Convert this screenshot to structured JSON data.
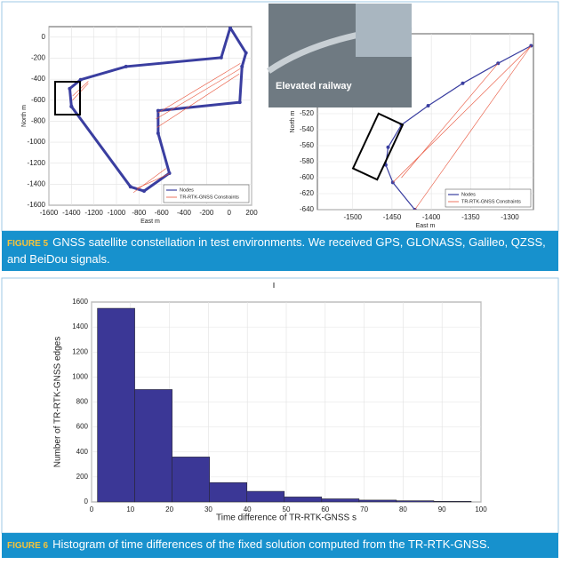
{
  "chart_data": [
    {
      "type": "line",
      "xlabel": "East m",
      "ylabel": "North m",
      "xlim": [
        -1600,
        200
      ],
      "xticks": [
        -1600,
        -1400,
        -1200,
        -1000,
        -800,
        -600,
        -400,
        -200,
        0,
        200
      ],
      "ylim": [
        -1600,
        100
      ],
      "yticks": [
        -1600,
        -1400,
        -1200,
        -1000,
        -800,
        -600,
        -400,
        -200,
        0
      ],
      "grid": true,
      "legend": "lower right",
      "series": [
        {
          "name": "Nodes",
          "color": "#3a3ea0",
          "x": [
            -1400,
            -1415,
            -1318,
            -915,
            -70,
            10,
            150,
            115,
            95,
            -630,
            -630,
            -530,
            -755,
            -875,
            -1400
          ],
          "values": [
            -660,
            -490,
            -405,
            -280,
            -195,
            90,
            -150,
            -280,
            -620,
            -700,
            -915,
            -1295,
            -1465,
            -1425,
            -660
          ]
        },
        {
          "name": "TR-RTK-GNSS Constraints",
          "color": "#e8533a",
          "x": [
            -1390,
            -1250,
            -1390,
            -1250,
            100,
            -630,
            100,
            -650,
            90,
            -640,
            -530,
            -820,
            -560,
            -850
          ],
          "values": [
            -560,
            -420,
            -600,
            -440,
            -250,
            -720,
            -300,
            -780,
            -350,
            -860,
            -1300,
            -1440,
            -1250,
            -1480
          ]
        }
      ]
    },
    {
      "type": "line",
      "xlabel": "East m",
      "ylabel": "North m",
      "xlim": [
        -1545,
        -1270
      ],
      "xticks": [
        -1500,
        -1450,
        -1400,
        -1350,
        -1300
      ],
      "ylim": [
        -640,
        -420
      ],
      "yticks": [
        -640,
        -620,
        -600,
        -580,
        -560,
        -540,
        -520
      ],
      "grid": true,
      "legend": "lower right",
      "series": [
        {
          "name": "Nodes",
          "color": "#3a3ea0",
          "x": [
            -1273,
            -1315,
            -1360,
            -1404,
            -1438,
            -1455,
            -1458,
            -1449,
            -1421
          ],
          "values": [
            -435,
            -457,
            -482,
            -510,
            -534,
            -562,
            -584,
            -606,
            -640
          ]
        },
        {
          "name": "TR-RTK-GNSS Constraints",
          "color": "#e8533a",
          "x": [
            -1273,
            -1449,
            -1273,
            -1421,
            -1315,
            -1438
          ],
          "values": [
            -435,
            -606,
            -435,
            -640,
            -457,
            -600
          ]
        }
      ]
    },
    {
      "type": "histogram",
      "xlabel": "Time difference of TR-RTK-GNSS s",
      "ylabel": "Number of TR-RTK-GNSS edges",
      "bins": [
        1.5,
        11.1,
        20.7,
        30.3,
        39.9,
        49.5,
        59.1,
        68.7,
        78.3,
        87.9,
        97.5
      ],
      "values": [
        1550,
        900,
        360,
        155,
        85,
        40,
        25,
        15,
        10,
        5
      ],
      "color": "#3b3796",
      "xlim": [
        0,
        100
      ],
      "xticks": [
        0,
        10,
        20,
        30,
        40,
        50,
        60,
        70,
        80,
        90,
        100
      ],
      "ylim": [
        0,
        1600
      ],
      "yticks": [
        0,
        200,
        400,
        600,
        800,
        1000,
        1200,
        1400,
        1600
      ],
      "grid": true
    }
  ],
  "photo_label": "Elevated railway",
  "figure5": {
    "label": "FIGURE 5",
    "caption": "GNSS satellite constellation in test environments. We received GPS, GLONASS, Galileo, QZSS, and BeiDou signals."
  },
  "figure6": {
    "label": "FIGURE 6",
    "caption": "Histogram of time differences of the fixed solution computed from the TR-RTK-GNSS."
  }
}
